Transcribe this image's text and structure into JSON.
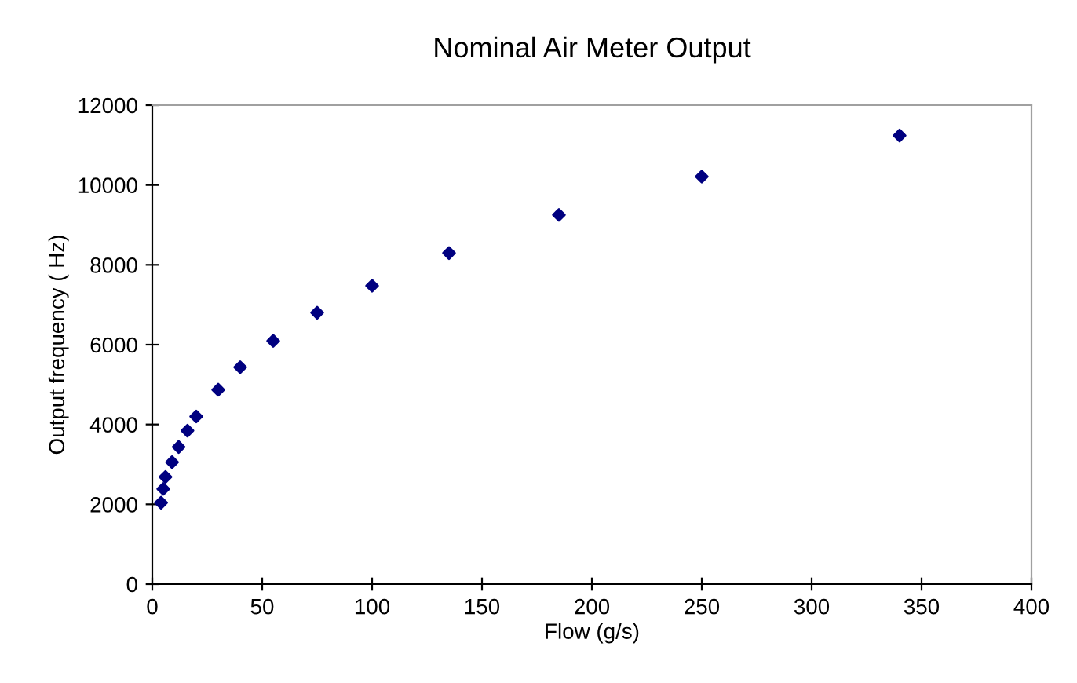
{
  "chart_data": {
    "type": "scatter",
    "title": "Nominal Air Meter Output",
    "xlabel": "Flow (g/s)",
    "ylabel": "Output frequency ( Hz)",
    "x": [
      4,
      5,
      6,
      9,
      12,
      16,
      20,
      30,
      40,
      55,
      75,
      100,
      135,
      185,
      250,
      340
    ],
    "series": [
      {
        "color": "#000080",
        "values": [
          2040,
          2385,
          2685,
          3055,
          3435,
          3845,
          4200,
          4870,
          5435,
          6095,
          6800,
          7475,
          8295,
          9250,
          10210,
          11240
        ]
      }
    ],
    "xlim": [
      0,
      400
    ],
    "xticks": [
      0,
      50,
      100,
      150,
      200,
      250,
      300,
      350,
      400
    ],
    "ylim": [
      0,
      12000
    ],
    "yticks": [
      0,
      2000,
      4000,
      6000,
      8000,
      10000,
      12000
    ],
    "marker": "diamond",
    "grid": false,
    "legend": false
  }
}
